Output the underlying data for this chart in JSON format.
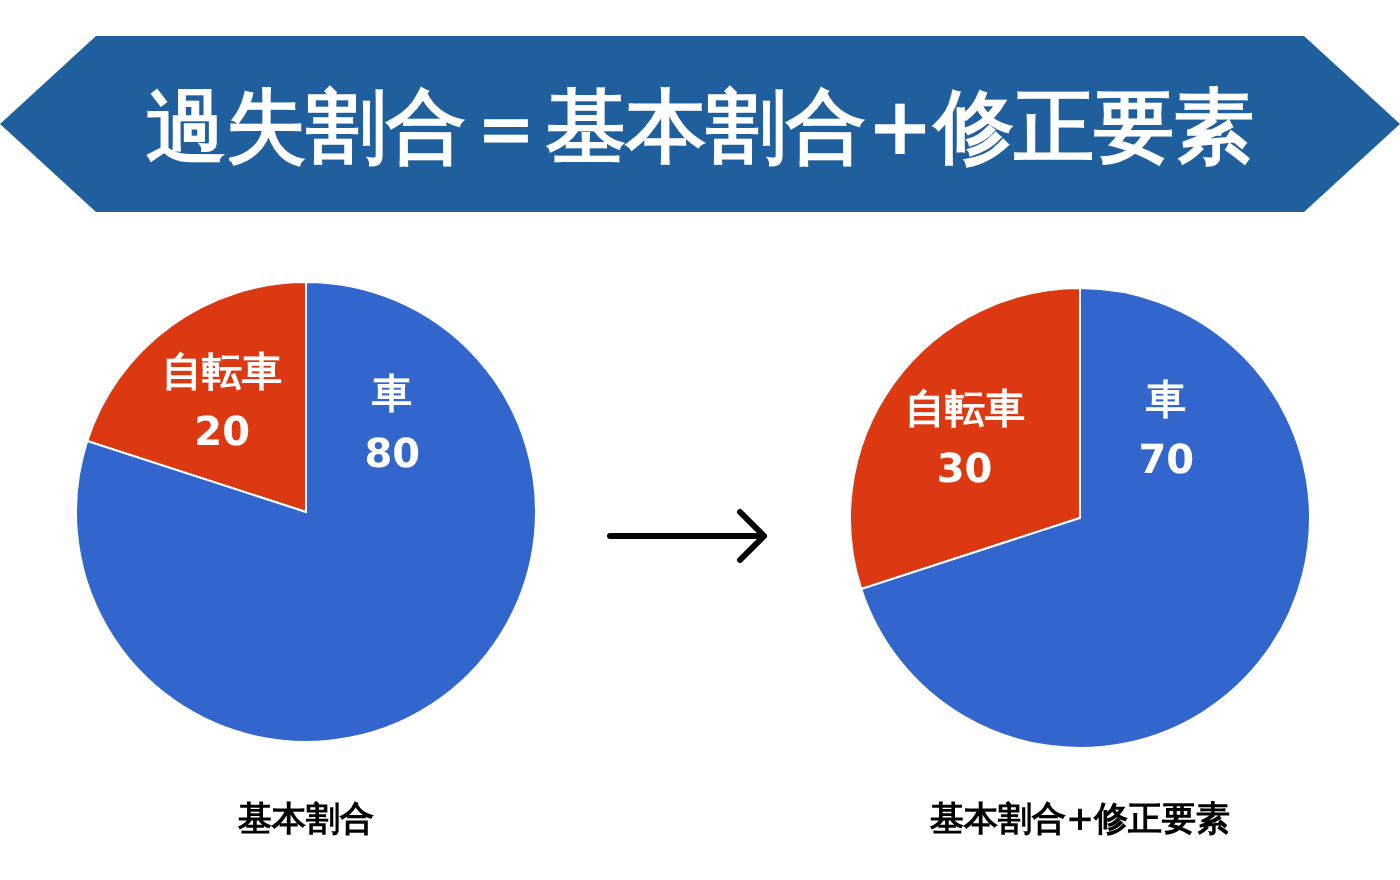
{
  "chart_data": [
    {
      "type": "pie",
      "title": "過失割合＝基本割合+修正要素",
      "categories": [
        "自転車",
        "車"
      ],
      "values": [
        20,
        80
      ],
      "colors": [
        "#dc3912",
        "#3366cc"
      ],
      "data_labels": true,
      "annotations": [
        "基本割合"
      ]
    },
    {
      "type": "pie",
      "categories": [
        "自転車",
        "車"
      ],
      "values": [
        30,
        70
      ],
      "colors": [
        "#dc3912",
        "#3366cc"
      ],
      "data_labels": true,
      "annotations": [
        "基本割合+修正要素"
      ]
    }
  ]
}
